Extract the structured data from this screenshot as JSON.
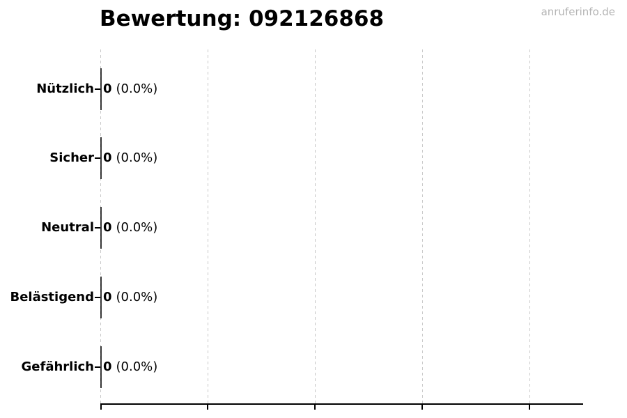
{
  "watermark": "anruferinfo.de",
  "chart_data": {
    "type": "bar",
    "orientation": "horizontal",
    "title": "Bewertung: 092126868",
    "categories": [
      "Nützlich",
      "Sicher",
      "Neutral",
      "Belästigend",
      "Gefährlich"
    ],
    "values": [
      0,
      0,
      0,
      0,
      0
    ],
    "value_labels": [
      "0",
      "0",
      "0",
      "0",
      "0"
    ],
    "pct_labels": [
      "(0.0%)",
      "(0.0%)",
      "(0.0%)",
      "(0.0%)",
      "(0.0%)"
    ],
    "bar_annotations": [
      "0 (0.0%)",
      "0 (0.0%)",
      "0 (0.0%)",
      "0 (0.0%)",
      "0 (0.0%)"
    ],
    "xlabel": "",
    "ylabel": "",
    "x_tick_count": 5,
    "x_tick_labels": [],
    "grid": "vertical-dashed",
    "legend": "none",
    "colors": {
      "text": "#000000",
      "axis": "#000000",
      "bar_edge": "#000000",
      "gridline": "#c9c9c9",
      "watermark": "#b4b4b4",
      "background": "#ffffff"
    }
  }
}
